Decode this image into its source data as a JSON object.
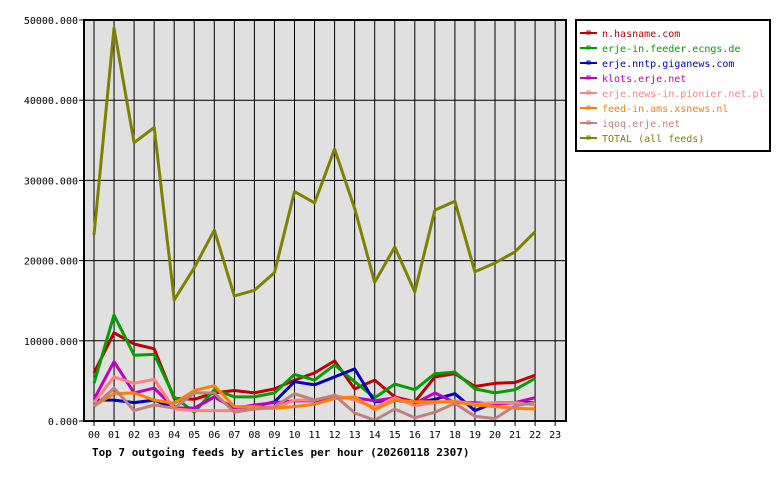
{
  "chart_data": {
    "type": "line",
    "title": "Top 7 outgoing feeds by articles per hour (20260118 2307)",
    "xlabel": "",
    "ylabel": "",
    "ylim": [
      0,
      50000
    ],
    "grid": true,
    "legend_position": "right",
    "yticks": [
      "0.000",
      "10000.000",
      "20000.000",
      "30000.000",
      "40000.000",
      "50000.000"
    ],
    "categories": [
      "00",
      "01",
      "02",
      "03",
      "04",
      "05",
      "06",
      "07",
      "08",
      "09",
      "10",
      "11",
      "12",
      "13",
      "14",
      "15",
      "16",
      "17",
      "18",
      "19",
      "20",
      "21",
      "22",
      "23"
    ],
    "series": [
      {
        "name": "n.hasname.com",
        "color": "#c00000",
        "values": [
          6000,
          11000,
          9600,
          9000,
          2800,
          2700,
          3500,
          3800,
          3500,
          4000,
          5100,
          6000,
          7500,
          4000,
          5100,
          3000,
          2400,
          5500,
          5900,
          4300,
          4700,
          4800,
          5700
        ]
      },
      {
        "name": "erje-in.feeder.ecngs.de",
        "color": "#00a000",
        "values": [
          4700,
          13200,
          8200,
          8300,
          3000,
          1100,
          3900,
          3000,
          3000,
          3500,
          5800,
          5100,
          7000,
          4900,
          2900,
          4600,
          3900,
          5900,
          6100,
          4000,
          3500,
          3900,
          5300
        ]
      },
      {
        "name": "erje.nntp.giganews.com",
        "color": "#0000c0",
        "values": [
          2600,
          2600,
          2300,
          2600,
          1600,
          1600,
          3000,
          1600,
          1800,
          2400,
          4900,
          4500,
          5500,
          6500,
          2400,
          2600,
          2300,
          2700,
          3400,
          1300,
          2300,
          2300,
          2300
        ]
      },
      {
        "name": "klots.erje.net",
        "color": "#c000c0",
        "values": [
          2700,
          7400,
          3500,
          4100,
          1600,
          1600,
          3000,
          1600,
          2000,
          2300,
          2500,
          2500,
          2900,
          2900,
          2500,
          2900,
          2200,
          3500,
          2300,
          2300,
          2100,
          2300,
          2900
        ]
      },
      {
        "name": "erje.news-in.pionier.net.pl",
        "color": "#ff8080",
        "values": [
          2300,
          5500,
          4700,
          5200,
          1500,
          1300,
          1300,
          1300,
          1500,
          1600,
          2600,
          2600,
          3200,
          2600,
          1700,
          2900,
          1900,
          2300,
          2500,
          2100,
          2300,
          2300,
          2000
        ]
      },
      {
        "name": "feed-in.ams.xsnews.nl",
        "color": "#ff8000",
        "values": [
          1900,
          3400,
          3500,
          2600,
          2200,
          3800,
          4400,
          1800,
          1800,
          1600,
          1800,
          2100,
          2800,
          3000,
          1400,
          2600,
          2400,
          2400,
          2400,
          2000,
          1800,
          1600,
          1500
        ]
      },
      {
        "name": "iqoq.erje.net",
        "color": "#c08080",
        "values": [
          1800,
          4100,
          1300,
          2000,
          1600,
          3500,
          3500,
          1100,
          1500,
          1800,
          3400,
          2600,
          3200,
          1000,
          100,
          1500,
          400,
          1100,
          2200,
          600,
          300,
          1900,
          2300
        ]
      },
      {
        "name": "TOTAL (all feeds)",
        "color": "#808000",
        "values": [
          23200,
          49000,
          34700,
          36600,
          15100,
          19100,
          23800,
          15600,
          16300,
          18500,
          28600,
          27200,
          33900,
          26500,
          17300,
          21700,
          16100,
          26300,
          27400,
          18600,
          19700,
          21100,
          23600
        ]
      }
    ]
  }
}
